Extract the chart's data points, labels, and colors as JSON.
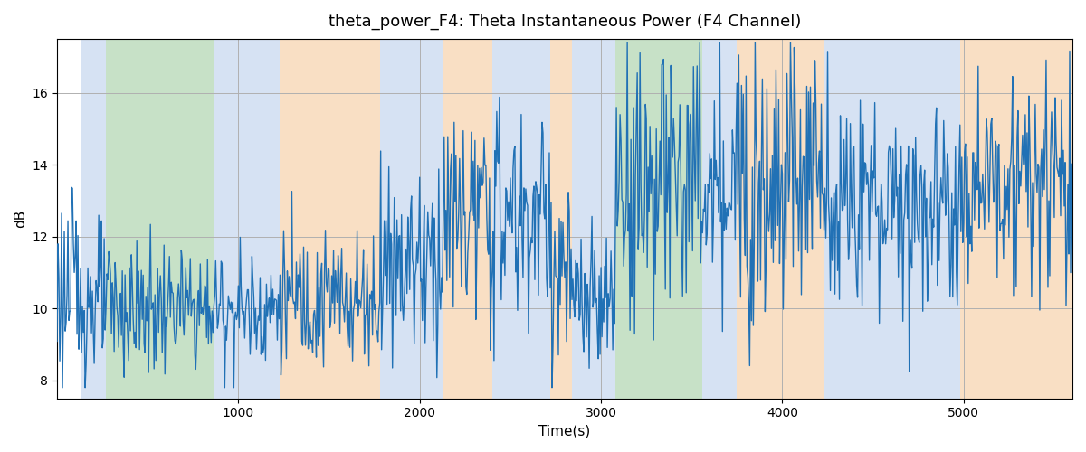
{
  "title": "theta_power_F4: Theta Instantaneous Power (F4 Channel)",
  "xlabel": "Time(s)",
  "ylabel": "dB",
  "ylim": [
    7.5,
    17.5
  ],
  "xlim": [
    0,
    5600
  ],
  "line_color": "#2171b5",
  "line_width": 1.0,
  "bg_color": "#ffffff",
  "grid_color": "#b0b0b0",
  "yticks": [
    8,
    10,
    12,
    14,
    16
  ],
  "xticks": [
    1000,
    2000,
    3000,
    4000,
    5000
  ],
  "bands": [
    {
      "start": 130,
      "end": 270,
      "color": "#aec6e8",
      "alpha": 0.5
    },
    {
      "start": 270,
      "end": 870,
      "color": "#90c490",
      "alpha": 0.5
    },
    {
      "start": 870,
      "end": 1230,
      "color": "#aec6e8",
      "alpha": 0.5
    },
    {
      "start": 1230,
      "end": 1780,
      "color": "#f5c08a",
      "alpha": 0.5
    },
    {
      "start": 1780,
      "end": 2130,
      "color": "#aec6e8",
      "alpha": 0.5
    },
    {
      "start": 2130,
      "end": 2400,
      "color": "#f5c08a",
      "alpha": 0.5
    },
    {
      "start": 2400,
      "end": 2720,
      "color": "#aec6e8",
      "alpha": 0.5
    },
    {
      "start": 2720,
      "end": 2840,
      "color": "#f5c08a",
      "alpha": 0.5
    },
    {
      "start": 2840,
      "end": 3080,
      "color": "#aec6e8",
      "alpha": 0.5
    },
    {
      "start": 3080,
      "end": 3560,
      "color": "#90c490",
      "alpha": 0.5
    },
    {
      "start": 3560,
      "end": 3750,
      "color": "#aec6e8",
      "alpha": 0.5
    },
    {
      "start": 3750,
      "end": 4230,
      "color": "#f5c08a",
      "alpha": 0.5
    },
    {
      "start": 4230,
      "end": 4700,
      "color": "#aec6e8",
      "alpha": 0.5
    },
    {
      "start": 4700,
      "end": 4980,
      "color": "#aec6e8",
      "alpha": 0.5
    },
    {
      "start": 4980,
      "end": 5600,
      "color": "#f5c08a",
      "alpha": 0.5
    }
  ],
  "signal_segments": [
    {
      "start": 0,
      "end": 130,
      "mean": 10.5,
      "std": 1.3
    },
    {
      "start": 130,
      "end": 270,
      "mean": 10.2,
      "std": 1.0
    },
    {
      "start": 270,
      "end": 870,
      "mean": 10.0,
      "std": 0.9
    },
    {
      "start": 870,
      "end": 1230,
      "mean": 10.0,
      "std": 0.9
    },
    {
      "start": 1230,
      "end": 1780,
      "mean": 10.3,
      "std": 1.0
    },
    {
      "start": 1780,
      "end": 2130,
      "mean": 11.5,
      "std": 1.4
    },
    {
      "start": 2130,
      "end": 2400,
      "mean": 12.5,
      "std": 1.5
    },
    {
      "start": 2400,
      "end": 2720,
      "mean": 12.5,
      "std": 1.5
    },
    {
      "start": 2720,
      "end": 2840,
      "mean": 11.0,
      "std": 1.3
    },
    {
      "start": 2840,
      "end": 3080,
      "mean": 10.0,
      "std": 1.0
    },
    {
      "start": 3080,
      "end": 3560,
      "mean": 13.5,
      "std": 2.0
    },
    {
      "start": 3560,
      "end": 3750,
      "mean": 13.0,
      "std": 1.5
    },
    {
      "start": 3750,
      "end": 4230,
      "mean": 14.0,
      "std": 2.0
    },
    {
      "start": 4230,
      "end": 4700,
      "mean": 13.0,
      "std": 1.5
    },
    {
      "start": 4700,
      "end": 4980,
      "mean": 13.0,
      "std": 1.5
    },
    {
      "start": 4980,
      "end": 5600,
      "mean": 13.5,
      "std": 1.5
    }
  ],
  "seed": 123
}
